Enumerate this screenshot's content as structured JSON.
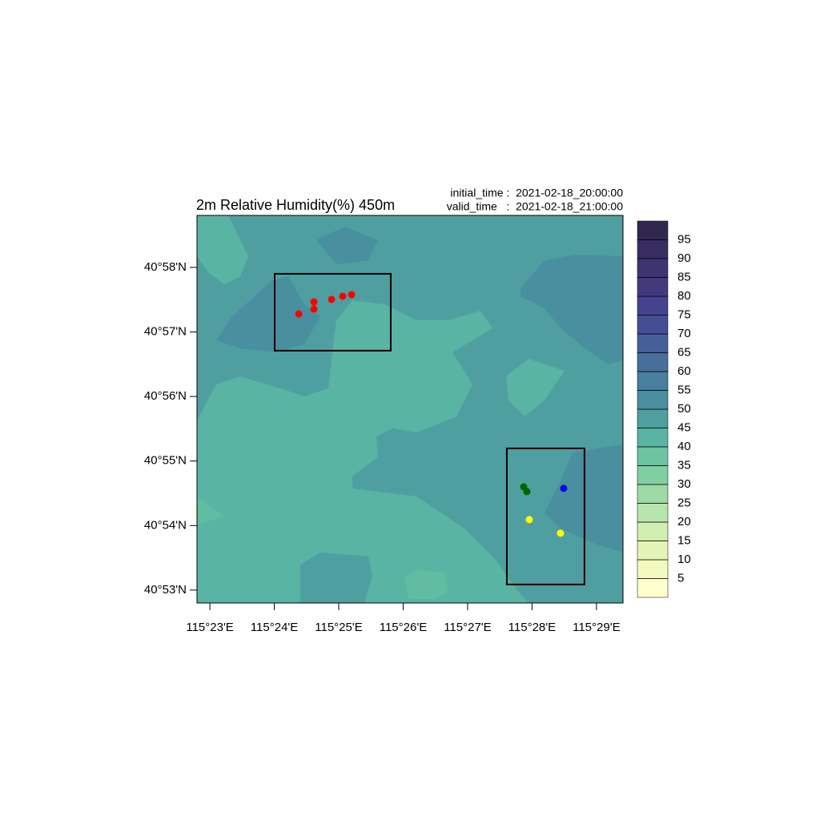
{
  "chart_data": {
    "type": "contour",
    "title": "2m Relative Humidity(%) 450m",
    "initial_time": "initial_time :  2021-02-18_20:00:00",
    "valid_time": "valid_time   :  2021-02-18_21:00:00",
    "xlim": [
      115.38,
      115.4902
    ],
    "ylim": [
      40.88,
      40.9801
    ],
    "xticks": [
      {
        "value": 115.383333,
        "label": "115°23'E"
      },
      {
        "value": 115.4,
        "label": "115°24'E"
      },
      {
        "value": 115.416667,
        "label": "115°25'E"
      },
      {
        "value": 115.433333,
        "label": "115°26'E"
      },
      {
        "value": 115.45,
        "label": "115°27'E"
      },
      {
        "value": 115.466667,
        "label": "115°28'E"
      },
      {
        "value": 115.483333,
        "label": "115°29'E"
      }
    ],
    "yticks": [
      {
        "value": 40.883333,
        "label": "40°53'N"
      },
      {
        "value": 40.9,
        "label": "40°54'N"
      },
      {
        "value": 40.916667,
        "label": "40°55'N"
      },
      {
        "value": 40.933333,
        "label": "40°56'N"
      },
      {
        "value": 40.95,
        "label": "40°57'N"
      },
      {
        "value": 40.966667,
        "label": "40°58'N"
      }
    ],
    "colorbar": {
      "clim": [
        0,
        100
      ],
      "levels": [
        5,
        10,
        15,
        20,
        25,
        30,
        35,
        40,
        45,
        50,
        55,
        60,
        65,
        70,
        75,
        80,
        85,
        90,
        95
      ],
      "colors": [
        "#ffffcc",
        "#f3fac0",
        "#e3f4b6",
        "#cfeeb0",
        "#b8e5ab",
        "#9ddaa6",
        "#80cfa2",
        "#6cc5a0",
        "#5ab4a3",
        "#4f9fa0",
        "#4a8f9f",
        "#477f9c",
        "#466f9a",
        "#455f98",
        "#454e95",
        "#454290",
        "#433a7e",
        "#3e3470",
        "#382d60",
        "#312850"
      ]
    },
    "boxes": [
      {
        "lon": [
          115.4001,
          115.43012
        ],
        "lat": [
          40.94517,
          40.96502
        ]
      },
      {
        "lon": [
          115.46015,
          115.48023
        ],
        "lat": [
          40.88478,
          40.91993
        ]
      }
    ],
    "series": [
      {
        "color": "#ff0000",
        "x": [
          115.40632,
          115.41025,
          115.41025,
          115.4148,
          115.4177,
          115.41998
        ],
        "y": [
          40.95467,
          40.95592,
          40.95777,
          40.9584,
          40.95922,
          40.95963
        ]
      },
      {
        "color": "#006400",
        "x": [
          115.4645,
          115.46532
        ],
        "y": [
          40.91,
          40.90877
        ]
      },
      {
        "color": "#0000ff",
        "x": [
          115.47485
        ],
        "y": [
          40.9096
        ]
      },
      {
        "color": "#ffff00",
        "x": [
          115.46595,
          115.47402
        ],
        "y": [
          40.90153,
          40.89802
        ]
      }
    ]
  }
}
